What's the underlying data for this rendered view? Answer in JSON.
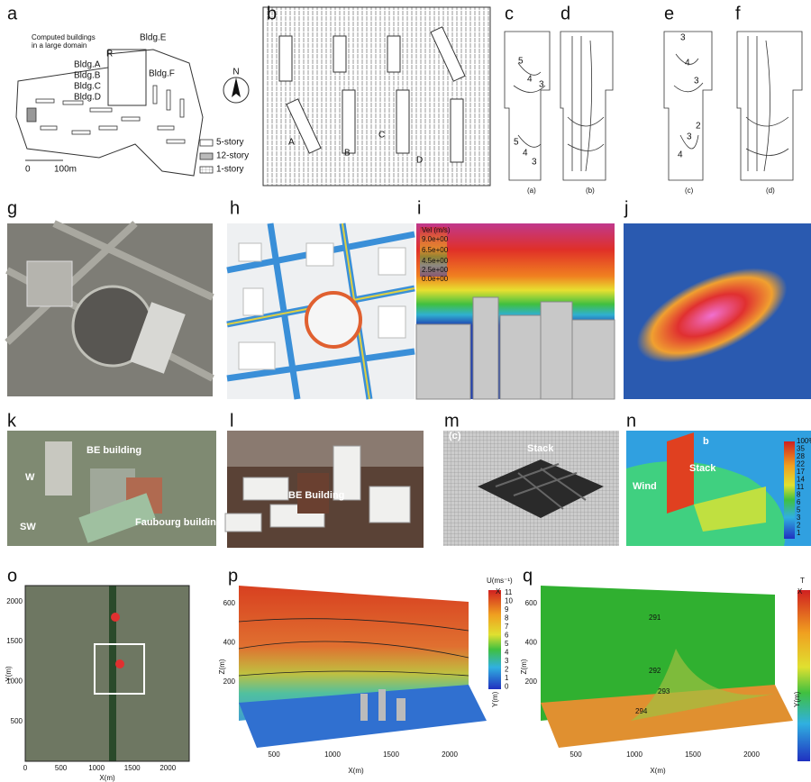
{
  "panels": [
    {
      "label": "a",
      "texts": [
        "Computed buildings",
        "in a large domain",
        "Bldg.E",
        "R",
        "Bldg.A",
        "Bldg.B",
        "Bldg.C",
        "Bldg.D",
        "Bldg.F",
        "N",
        "0",
        "100m",
        "5-story",
        "12-story",
        "1-story"
      ]
    },
    {
      "label": "b",
      "texts": [
        "A",
        "B",
        "C",
        "D"
      ]
    },
    {
      "label": "c",
      "texts": [
        "5",
        "4",
        "3",
        "5",
        "4",
        "3",
        "(a)"
      ]
    },
    {
      "label": "d",
      "texts": [
        "(b)"
      ]
    },
    {
      "label": "e",
      "texts": [
        "3",
        "4",
        "3",
        "2",
        "3",
        "4",
        "(c)"
      ]
    },
    {
      "label": "f",
      "texts": [
        "(d)"
      ]
    },
    {
      "label": "g",
      "texts": []
    },
    {
      "label": "h",
      "texts": []
    },
    {
      "label": "i",
      "texts": [
        "Vel (m/s)",
        "9.0e+00",
        "6.5e+00",
        "4.5e+00",
        "2.5e+00",
        "0.0e+00"
      ]
    },
    {
      "label": "j",
      "texts": []
    },
    {
      "label": "k",
      "texts": [
        "BE building",
        "W",
        "SW",
        "Faubourg building"
      ]
    },
    {
      "label": "l",
      "texts": [
        "BE Building"
      ]
    },
    {
      "label": "m",
      "texts": [
        "(c)",
        "Stack"
      ]
    },
    {
      "label": "n",
      "texts": [
        "b",
        "Stack",
        "Wind"
      ],
      "colorbar": [
        "100%",
        "35",
        "28",
        "22",
        "17",
        "14",
        "11",
        "8",
        "6",
        "5",
        "3",
        "2",
        "1"
      ]
    },
    {
      "label": "o",
      "xlabel": "X(m)",
      "ylabel": "Y(m)",
      "xticks": [
        0,
        500,
        1000,
        1500,
        2000
      ],
      "yticks": [
        500,
        1000,
        1500,
        2000
      ]
    },
    {
      "label": "p",
      "colorbar_title": "U(ms⁻¹)",
      "colorbar": [
        11,
        10,
        9,
        8,
        7,
        6,
        5,
        4,
        3,
        2,
        1,
        0
      ],
      "xlabel": "X(m)",
      "ylabel": "Y(m)",
      "zlabel": "Z(m)",
      "axis_icon": "X",
      "xticks": [
        500,
        1000,
        1500,
        2000
      ],
      "zticks": [
        200,
        400,
        600
      ]
    },
    {
      "label": "q",
      "isotherms": [
        "291",
        "292",
        "293",
        "294"
      ],
      "colorbar_title": "T",
      "xlabel": "X(m)",
      "ylabel": "Y(m)",
      "zlabel": "Z(m)",
      "axis_icon": "X",
      "xticks": [
        500,
        1000,
        1500,
        2000
      ],
      "zticks": [
        200,
        400,
        600
      ]
    }
  ]
}
